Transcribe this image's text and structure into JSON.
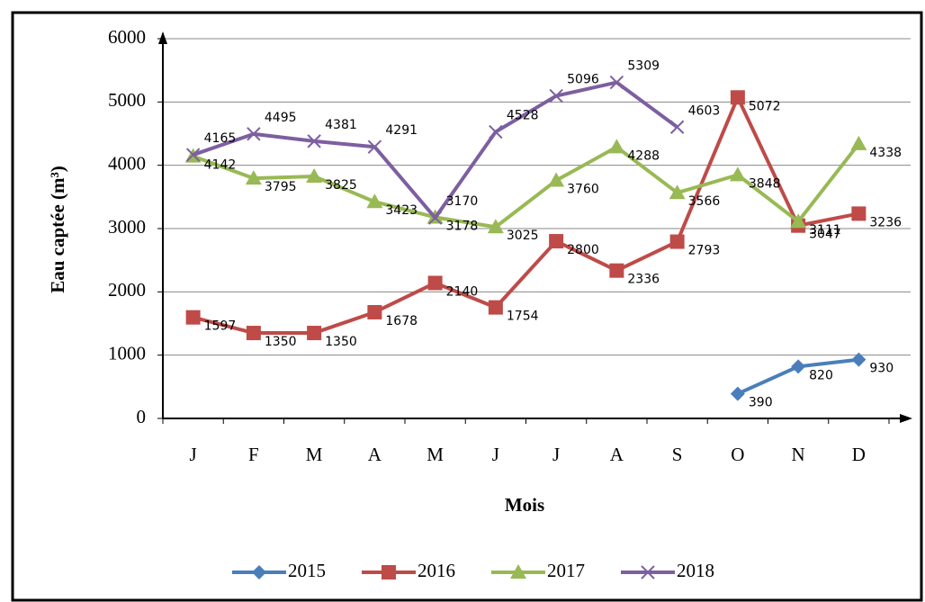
{
  "chart_data": {
    "type": "line",
    "x_label": "Mois",
    "y_label": "Eau captée (m³)",
    "categories": [
      "J",
      "F",
      "M",
      "A",
      "M",
      "J",
      "J",
      "A",
      "S",
      "O",
      "N",
      "D"
    ],
    "ylim": [
      0,
      6000
    ],
    "yticks": [
      0,
      1000,
      2000,
      3000,
      4000,
      5000,
      6000
    ],
    "grid": true,
    "legend": "bottom",
    "series": [
      {
        "name": "2015",
        "color": "#4a7ebb",
        "marker": "diamond",
        "values": [
          null,
          null,
          null,
          null,
          null,
          null,
          null,
          null,
          null,
          390,
          820,
          930
        ]
      },
      {
        "name": "2016",
        "color": "#be4b48",
        "marker": "square",
        "values": [
          1597,
          1350,
          1350,
          1678,
          2140,
          1754,
          2800,
          2336,
          2793,
          5072,
          3047,
          3236
        ]
      },
      {
        "name": "2017",
        "color": "#98b954",
        "marker": "triangle",
        "values": [
          4142,
          3795,
          3825,
          3423,
          3178,
          3025,
          3760,
          4288,
          3566,
          3848,
          3111,
          4338
        ]
      },
      {
        "name": "2018",
        "color": "#7d5fa0",
        "marker": "x",
        "values": [
          4165,
          4495,
          4381,
          4291,
          3170,
          4528,
          5096,
          5309,
          4603,
          null,
          null,
          null
        ]
      }
    ]
  }
}
